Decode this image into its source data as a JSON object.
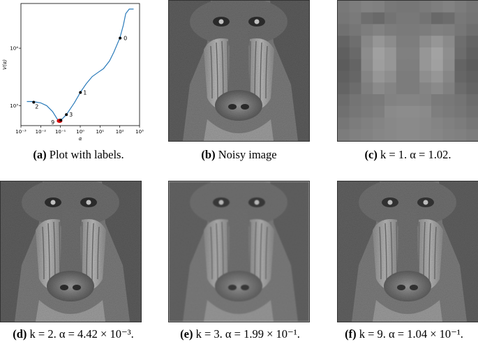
{
  "panels": [
    {
      "label": "(a)",
      "caption": "Plot with labels."
    },
    {
      "label": "(b)",
      "caption": "Noisy image"
    },
    {
      "label": "(c)",
      "caption": "k = 1. α = 1.02."
    },
    {
      "label": "(d)",
      "caption": "k = 2. α = 4.42 × 10⁻³."
    },
    {
      "label": "(e)",
      "caption": "k = 3. α = 1.99 × 10⁻¹."
    },
    {
      "label": "(f)",
      "caption": "k = 9. α = 1.04 × 10⁻¹."
    }
  ],
  "chart_data": {
    "type": "line",
    "xlabel": "α",
    "ylabel": "V(α)",
    "xscale": "log",
    "yscale": "log",
    "xlim": [
      0.001,
      1000
    ],
    "ylim": [
      450,
      60000
    ],
    "x_ticks": [
      "10⁻³",
      "10⁻²",
      "10⁻¹",
      "10⁰",
      "10¹",
      "10²",
      "10³"
    ],
    "y_ticks": [
      "10³",
      "10⁴"
    ],
    "line_color": "#2b7bba",
    "curve": {
      "x": [
        0.002,
        0.004,
        0.006,
        0.01,
        0.02,
        0.04,
        0.06,
        0.08,
        0.1,
        0.13,
        0.2,
        0.3,
        0.5,
        0.8,
        1.0,
        2,
        4,
        8,
        15,
        30,
        50,
        100,
        150,
        200,
        300,
        500
      ],
      "y": [
        1180,
        1180,
        1150,
        1120,
        1000,
        790,
        630,
        540,
        560,
        600,
        700,
        860,
        1120,
        1480,
        1700,
        2400,
        3200,
        3800,
        4400,
        6000,
        8500,
        15000,
        25000,
        40000,
        48000,
        48000
      ]
    },
    "points": [
      {
        "label": "0",
        "x": 104,
        "y": 15000
      },
      {
        "label": "1",
        "x": 1.02,
        "y": 1700
      },
      {
        "label": "2",
        "x": 0.00442,
        "y": 1150
      },
      {
        "label": "3",
        "x": 0.199,
        "y": 700
      },
      {
        "label": "9",
        "x": 0.104,
        "y": 560
      }
    ],
    "highlight_color": "#d40000"
  }
}
